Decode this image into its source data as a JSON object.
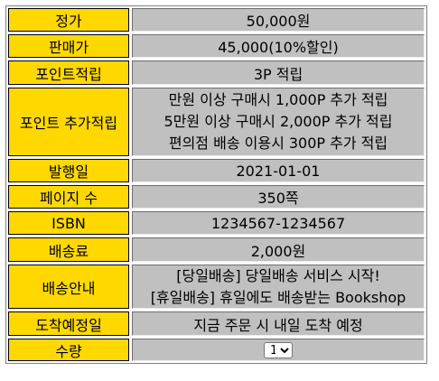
{
  "rows": {
    "list_price": {
      "label": "정가",
      "value": "50,000원"
    },
    "sale_price": {
      "label": "판매가",
      "value": "45,000(10%할인)"
    },
    "points": {
      "label": "포인트적립",
      "value": "3P 적립"
    },
    "extra_points": {
      "label": "포인트 추가적립",
      "lines": [
        "만원 이상 구매시 1,000P 추가 적립",
        "5만원 이상 구매시 2,000P 추가 적립",
        "편의점 배송 이용시 300P 추가 적립"
      ]
    },
    "pub_date": {
      "label": "발행일",
      "value": "2021-01-01"
    },
    "pages": {
      "label": "페이지 수",
      "value": "350쪽"
    },
    "isbn": {
      "label": "ISBN",
      "value": "1234567-1234567"
    },
    "shipping_fee": {
      "label": "배송료",
      "value": "2,000원"
    },
    "shipping_info": {
      "label": "배송안내",
      "lines": [
        "[당일배송] 당일배송 서비스 시작!",
        "[휴일배송] 휴일에도 배송받는 Bookshop"
      ]
    },
    "arrival": {
      "label": "도착예정일",
      "value": "지금 주문 시 내일 도착 예정"
    },
    "quantity": {
      "label": "수량",
      "selected": "1",
      "options": [
        "1"
      ]
    }
  }
}
